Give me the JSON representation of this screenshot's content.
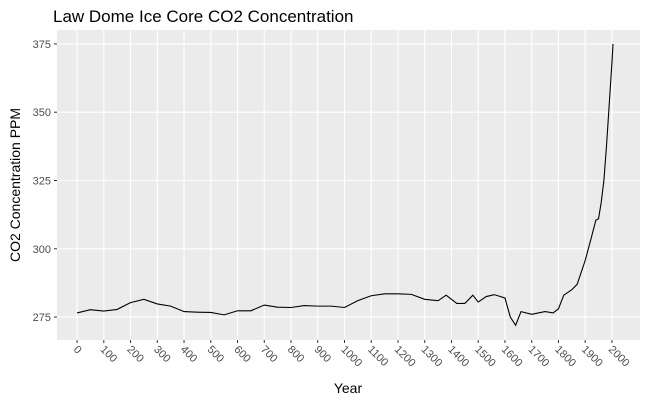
{
  "chart_data": {
    "type": "line",
    "title": "Law Dome Ice Core CO2 Concentration",
    "x_label": "Year",
    "y_label": "CO2 Concentration PPM",
    "x": [
      0,
      50,
      100,
      150,
      200,
      250,
      300,
      350,
      400,
      450,
      500,
      550,
      600,
      650,
      700,
      750,
      800,
      850,
      900,
      950,
      1000,
      1050,
      1100,
      1150,
      1200,
      1250,
      1300,
      1350,
      1380,
      1420,
      1450,
      1480,
      1500,
      1530,
      1560,
      1600,
      1620,
      1640,
      1660,
      1700,
      1750,
      1780,
      1800,
      1820,
      1850,
      1870,
      1900,
      1920,
      1940,
      1950,
      1960,
      1970,
      1980,
      1990,
      2000,
      2004
    ],
    "series": [
      {
        "name": "CO2",
        "color": "#000000",
        "values": [
          276.5,
          277.7,
          277.2,
          277.8,
          280.3,
          281.5,
          279.8,
          279,
          277,
          276.8,
          276.7,
          275.8,
          277.3,
          277.3,
          279.4,
          278.6,
          278.5,
          279.2,
          279,
          279,
          278.5,
          281,
          282.8,
          283.5,
          283.5,
          283.3,
          281.5,
          281,
          283,
          280,
          280,
          283,
          280.5,
          282.5,
          283.2,
          282,
          275,
          272,
          277,
          276,
          277,
          276.5,
          278,
          283,
          285,
          287,
          295.7,
          303,
          310.5,
          311,
          317,
          325,
          338,
          353,
          368,
          375
        ]
      }
    ],
    "xlim": [
      -75,
      2105
    ],
    "ylim": [
      266.6,
      380.1
    ],
    "xticks": [
      0,
      100,
      200,
      300,
      400,
      500,
      600,
      700,
      800,
      900,
      1000,
      1100,
      1200,
      1300,
      1400,
      1500,
      1600,
      1700,
      1800,
      1900,
      2000
    ],
    "yticks": [
      275,
      300,
      325,
      350,
      375
    ],
    "grid": true
  }
}
